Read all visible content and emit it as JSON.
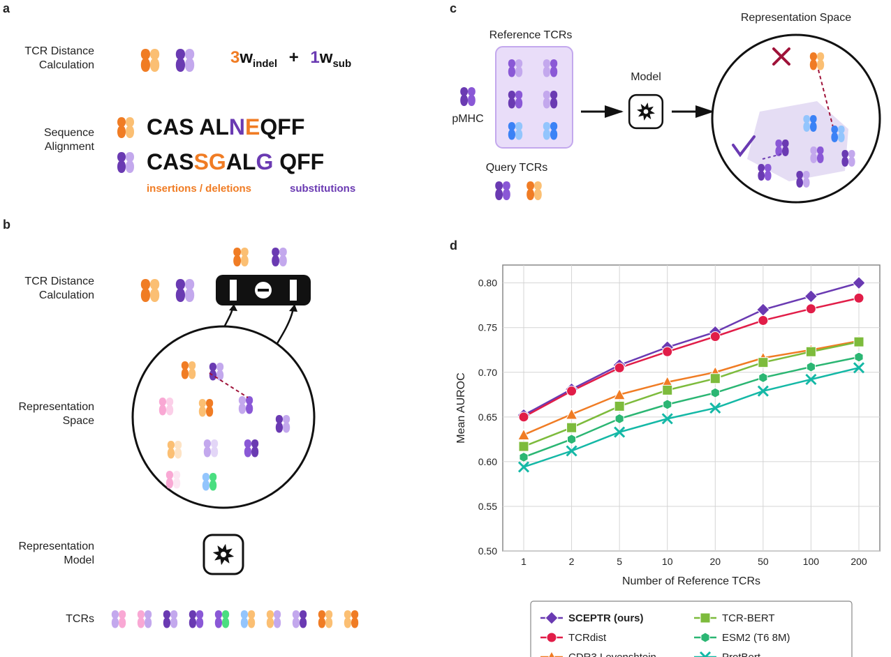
{
  "panelLetters": {
    "a": "a",
    "b": "b",
    "c": "c",
    "d": "d"
  },
  "colors": {
    "orange": "#f07c24",
    "orange_light": "#fbbf73",
    "purple": "#6a3ab2",
    "purple_mid": "#8a58d6",
    "purple_light": "#c3a8ed",
    "blue": "#3b82f6",
    "blue_light": "#93c5fd",
    "pink": "#f9a8d4",
    "teal": "#14b8a6",
    "green": "#67c23a",
    "green_mid": "#4ade80",
    "red": "#e11d48",
    "darkred": "#9f1239",
    "black": "#111111",
    "grey_grid": "#d4d4d4",
    "grey_border": "#888888",
    "ref_box_fill": "#e9ddf9",
    "ref_box_stroke": "#c3a8ed",
    "rep_space_fill": "#dcd1f0"
  },
  "panelA": {
    "labels": {
      "dist": [
        "TCR Distance",
        "Calculation"
      ],
      "align": [
        "Sequence",
        "Alignment"
      ]
    },
    "formula": {
      "coef1": "3",
      "w": "w",
      "sub1": "indel",
      "plus": "+",
      "coef2": "1",
      "sub2": "sub"
    },
    "seq1": [
      {
        "t": "CAS",
        "c": "#111111"
      },
      {
        "t": "   ",
        "c": "#111111"
      },
      {
        "t": "AL",
        "c": "#111111"
      },
      {
        "t": "N",
        "c": "#6a3ab2"
      },
      {
        "t": "E",
        "c": "#f07c24"
      },
      {
        "t": "QFF",
        "c": "#111111"
      }
    ],
    "seq2": [
      {
        "t": "CAS",
        "c": "#111111"
      },
      {
        "t": "SG",
        "c": "#f07c24"
      },
      {
        "t": "AL",
        "c": "#111111"
      },
      {
        "t": "G",
        "c": "#6a3ab2"
      },
      {
        "t": "  ",
        "c": "#111111"
      },
      {
        "t": "QFF",
        "c": "#111111"
      }
    ],
    "labelIndel": "insertions / deletions",
    "labelSub": "substitutions"
  },
  "panelB": {
    "labels": {
      "dist": [
        "TCR Distance",
        "Calculation"
      ],
      "space": [
        "Representation",
        "Space"
      ],
      "model": [
        "Representation",
        "Model"
      ],
      "tcrs": "TCRs"
    }
  },
  "panelC": {
    "labels": {
      "ref": "Reference TCRs",
      "pmhc": "pMHC",
      "query": "Query TCRs",
      "model": "Model",
      "rep": "Representation Space"
    }
  },
  "panelD": {
    "title": "",
    "xlabel": "Number of Reference TCRs",
    "ylabel": "Mean AUROC",
    "xticks": [
      "1",
      "2",
      "5",
      "10",
      "20",
      "50",
      "100",
      "200"
    ],
    "yticks": [
      "0.50",
      "0.55",
      "0.60",
      "0.65",
      "0.70",
      "0.75",
      "0.80"
    ],
    "ylim": [
      0.5,
      0.82
    ],
    "series": [
      {
        "name": "SCEPTR (ours)",
        "color": "#6a3ab2",
        "marker": "diamond",
        "bold": true,
        "y": [
          0.652,
          0.681,
          0.708,
          0.728,
          0.745,
          0.77,
          0.785,
          0.8
        ]
      },
      {
        "name": "TCRdist",
        "color": "#e11d48",
        "marker": "circle",
        "bold": false,
        "y": [
          0.65,
          0.679,
          0.705,
          0.723,
          0.74,
          0.758,
          0.771,
          0.783
        ]
      },
      {
        "name": "CDR3 Levenshtein",
        "color": "#f07c24",
        "marker": "triangle",
        "bold": false,
        "y": [
          0.63,
          0.653,
          0.675,
          0.689,
          0.7,
          0.716,
          0.725,
          0.735
        ]
      },
      {
        "name": "TCR-BERT",
        "color": "#7dbb3c",
        "marker": "square",
        "bold": false,
        "y": [
          0.617,
          0.638,
          0.662,
          0.68,
          0.693,
          0.711,
          0.723,
          0.734
        ]
      },
      {
        "name": "ESM2 (T6 8M)",
        "color": "#2bb673",
        "marker": "hex",
        "bold": false,
        "y": [
          0.605,
          0.625,
          0.648,
          0.664,
          0.677,
          0.694,
          0.706,
          0.717
        ]
      },
      {
        "name": "ProtBert",
        "color": "#14b8a6",
        "marker": "x",
        "bold": false,
        "y": [
          0.594,
          0.612,
          0.633,
          0.648,
          0.66,
          0.679,
          0.692,
          0.705
        ]
      }
    ],
    "legendOrder": [
      [
        0,
        3
      ],
      [
        1,
        4
      ],
      [
        2,
        5
      ]
    ]
  }
}
